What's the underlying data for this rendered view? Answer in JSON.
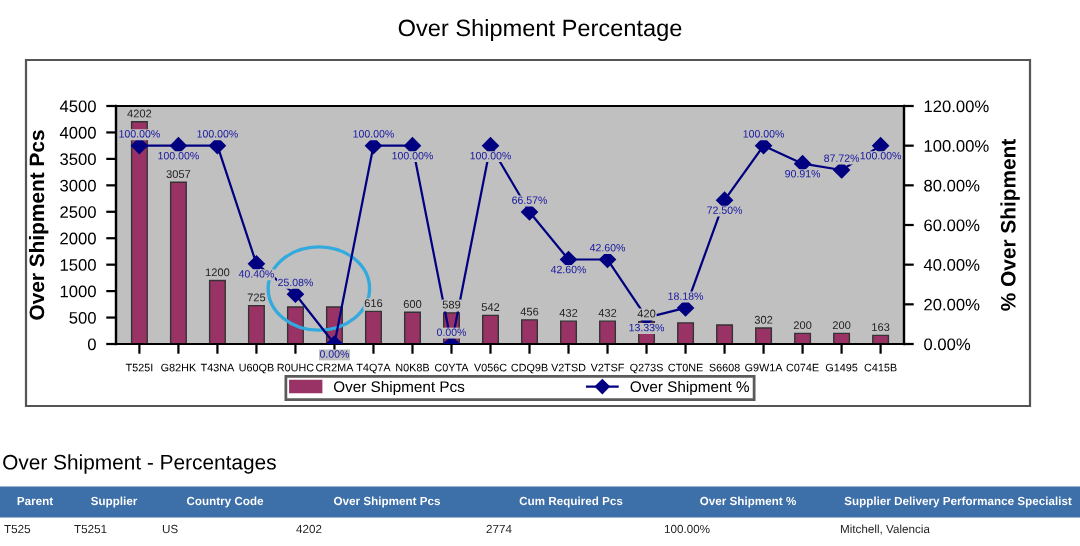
{
  "chart_data": {
    "type": "bar",
    "title": "Over Shipment Percentage",
    "categories": [
      "T525I",
      "G82HK",
      "T43NA",
      "U60QB",
      "R0UHC",
      "CR2MA",
      "T4Q7A",
      "N0K8B",
      "C0YTA",
      "V056C",
      "CDQ9B",
      "V2TSD",
      "V2TSF",
      "Q273S",
      "CT0NE",
      "S6608",
      "G9W1A",
      "C074E",
      "G1495",
      "C415B"
    ],
    "series": [
      {
        "name": "Over Shipment Pcs",
        "color": "#993366",
        "values": [
          4202,
          3057,
          1200,
          725,
          700,
          700,
          616,
          600,
          589,
          542,
          456,
          432,
          432,
          420,
          400,
          360,
          302,
          200,
          200,
          163
        ],
        "value_labels": [
          "4202",
          "3057",
          "1200",
          "725",
          null,
          null,
          "616",
          "600",
          "589",
          "542",
          "456",
          "432",
          "432",
          "420",
          null,
          null,
          "302",
          "200",
          "200",
          "163"
        ]
      },
      {
        "name": "Over Shipment %",
        "type": "line",
        "axis": "y2",
        "color": "#000080",
        "marker": "diamond",
        "values": [
          1.0,
          1.0,
          1.0,
          0.404,
          0.2508,
          0.0,
          1.0,
          1.0,
          0.0,
          1.0,
          0.6657,
          0.426,
          0.426,
          0.1333,
          0.1818,
          0.725,
          1.0,
          0.9091,
          0.8772,
          1.0
        ],
        "value_labels": [
          "100.00%",
          "100.00%",
          "100.00%",
          "40.40%",
          "25.08%",
          "0.00%",
          "100.00%",
          "100.00%",
          "0.00%",
          "100.00%",
          "66.57%",
          "42.60%",
          "42.60%",
          "13.33%",
          "18.18%",
          "72.50%",
          "100.00%",
          "90.91%",
          "87.72%",
          "100.00%"
        ]
      }
    ],
    "ylabel": "Over Shipment Pcs",
    "y2label": "% Over Shipment",
    "ylim": [
      0,
      4500
    ],
    "yticks": [
      0,
      500,
      1000,
      1500,
      2000,
      2500,
      3000,
      3500,
      4000,
      4500
    ],
    "y2lim": [
      0,
      1.2
    ],
    "y2ticks": [
      {
        "value": 0,
        "label": "0.00%"
      },
      {
        "value": 0.2,
        "label": "20.00%"
      },
      {
        "value": 0.4,
        "label": "40.00%"
      },
      {
        "value": 0.6,
        "label": "60.00%"
      },
      {
        "value": 0.8,
        "label": "80.00%"
      },
      {
        "value": 1.0,
        "label": "100.00%"
      },
      {
        "value": 1.2,
        "label": "120.00%"
      }
    ],
    "legend": "bottom",
    "grid": false,
    "annotations": [
      "Over Shipment - Percentages",
      "Parent",
      "Supplier",
      "Country Code",
      "Over Shipment Pcs",
      "Cum Required Pcs",
      "Over Shipment %",
      "Supplier Delivery Performance Specialist",
      "T525",
      "T5251",
      "US",
      "4202",
      "2774",
      "100.00%",
      "Mitchell, Valencia"
    ]
  }
}
